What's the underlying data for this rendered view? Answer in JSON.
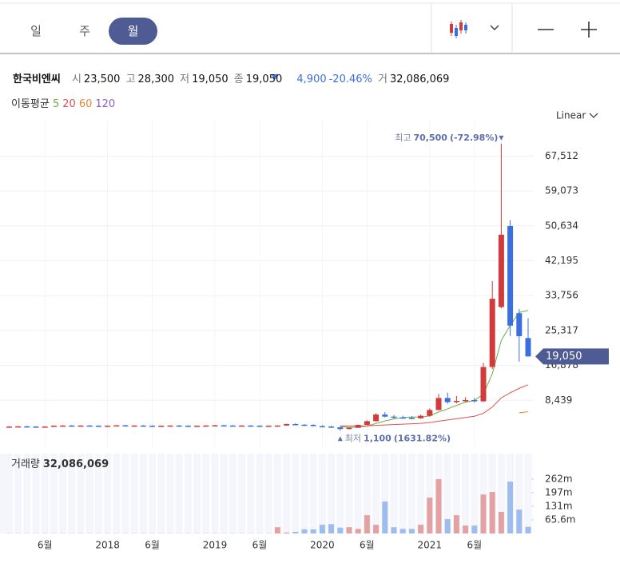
{
  "header": {
    "tabs": [
      "일",
      "주",
      "월"
    ],
    "name": "한국비엔씨",
    "quote": [
      {
        "label": "시",
        "value": "23,500"
      },
      {
        "label": "고",
        "value": "28,300"
      },
      {
        "label": "저",
        "value": "19,050"
      },
      {
        "label": "종",
        "value": "19,050"
      }
    ],
    "change": "4,900",
    "change_pct": "-20.46%",
    "volume_label": "거",
    "volume": "32,086,069",
    "scale": "Linear"
  },
  "chart_data": {
    "type": "candlestick",
    "grid": true,
    "categories": [
      null,
      null,
      null,
      null,
      "6월",
      null,
      null,
      null,
      null,
      null,
      null,
      "2018",
      null,
      null,
      null,
      null,
      "6월",
      null,
      null,
      null,
      null,
      null,
      null,
      "2019",
      null,
      null,
      null,
      null,
      "6월",
      null,
      null,
      null,
      null,
      null,
      null,
      "2020",
      null,
      null,
      null,
      null,
      "6월",
      null,
      null,
      null,
      null,
      null,
      null,
      "2021",
      null,
      null,
      null,
      null,
      "6월",
      null,
      null,
      null,
      null,
      null,
      null
    ],
    "open": [
      2050,
      2100,
      2150,
      2100,
      2050,
      2100,
      2300,
      2350,
      2300,
      2350,
      2300,
      2200,
      2300,
      2400,
      2300,
      2350,
      2300,
      2250,
      2300,
      2350,
      2300,
      2250,
      2300,
      2350,
      2400,
      2350,
      2300,
      2350,
      2300,
      2250,
      2300,
      2350,
      2700,
      2550,
      2500,
      2200,
      2100,
      1900,
      1500,
      1800,
      2500,
      3400,
      5000,
      4500,
      4300,
      4200,
      4100,
      4700,
      6100,
      9000,
      8000,
      8300,
      8500,
      8200,
      16500,
      31000,
      50600,
      29500,
      23500
    ],
    "high": [
      2200,
      2250,
      2300,
      2200,
      2150,
      2400,
      2450,
      2500,
      2400,
      2450,
      2400,
      2350,
      2450,
      2500,
      2400,
      2450,
      2400,
      2350,
      2400,
      2450,
      2400,
      2350,
      2400,
      2500,
      2550,
      2450,
      2400,
      2450,
      2400,
      2350,
      2400,
      2800,
      2900,
      2700,
      2650,
      2400,
      2300,
      2000,
      1900,
      2600,
      3600,
      5300,
      5600,
      4900,
      4700,
      4600,
      5000,
      6500,
      10000,
      10300,
      9500,
      9200,
      9000,
      17500,
      37300,
      70500,
      52000,
      30500,
      28300
    ],
    "low": [
      1950,
      2000,
      2050,
      2000,
      1950,
      2050,
      2200,
      2250,
      2200,
      2250,
      2150,
      2100,
      2200,
      2250,
      2200,
      2250,
      2200,
      2150,
      2200,
      2250,
      2200,
      2150,
      2200,
      2250,
      2300,
      2250,
      2200,
      2250,
      2150,
      2150,
      2200,
      2300,
      2450,
      2400,
      2150,
      2000,
      1800,
      1100,
      1400,
      1750,
      2400,
      3300,
      4300,
      4100,
      4000,
      3900,
      4000,
      4500,
      6000,
      7600,
      7700,
      8000,
      7900,
      8000,
      16000,
      30700,
      24000,
      17800,
      19050
    ],
    "close": [
      2100,
      2150,
      2100,
      2050,
      2100,
      2300,
      2350,
      2300,
      2350,
      2300,
      2200,
      2300,
      2400,
      2300,
      2350,
      2300,
      2250,
      2300,
      2350,
      2300,
      2250,
      2300,
      2350,
      2400,
      2350,
      2300,
      2350,
      2300,
      2250,
      2300,
      2350,
      2700,
      2550,
      2500,
      2200,
      2100,
      1900,
      1500,
      1800,
      2500,
      3400,
      5000,
      4500,
      4300,
      4200,
      4100,
      4700,
      6100,
      9000,
      8000,
      8300,
      8500,
      8200,
      16500,
      33000,
      48500,
      26500,
      23950,
      19050
    ],
    "up_color": "#d13b3b",
    "down_color": "#3b6fe0",
    "volume_up_color": "#e3a1a3",
    "volume_down_color": "#9ebcee",
    "ylim": [
      -2900,
      74350
    ],
    "yticks": [
      {
        "value": 8439,
        "label": "8,439"
      },
      {
        "value": 16878,
        "label": "16,878"
      },
      {
        "value": 25317,
        "label": "25,317"
      },
      {
        "value": 33756,
        "label": "33,756"
      },
      {
        "value": 42195,
        "label": "42,195"
      },
      {
        "value": 50634,
        "label": "50,634"
      },
      {
        "value": 59073,
        "label": "59,073"
      },
      {
        "value": 67512,
        "label": "67,512"
      }
    ],
    "ma_title": "이동평균",
    "series": [
      {
        "name": "5",
        "color": "#67b04a",
        "values": [
          null,
          null,
          null,
          null,
          null,
          null,
          null,
          null,
          null,
          null,
          null,
          null,
          null,
          null,
          null,
          null,
          null,
          null,
          null,
          null,
          null,
          null,
          null,
          null,
          null,
          null,
          null,
          null,
          null,
          null,
          null,
          null,
          null,
          null,
          null,
          null,
          null,
          2040,
          1900,
          1960,
          2220,
          2840,
          3440,
          3940,
          4280,
          4420,
          4360,
          4680,
          5620,
          6380,
          7220,
          7980,
          8400,
          9900,
          14900,
          22940,
          26540,
          29690,
          30200
        ]
      },
      {
        "name": "20",
        "color": "#e0504f",
        "values": [
          null,
          null,
          null,
          null,
          null,
          null,
          null,
          null,
          null,
          null,
          null,
          null,
          null,
          null,
          null,
          null,
          null,
          null,
          null,
          null,
          null,
          null,
          null,
          null,
          null,
          null,
          null,
          null,
          null,
          null,
          null,
          null,
          null,
          null,
          null,
          null,
          null,
          2250,
          2230,
          2220,
          2250,
          2380,
          2490,
          2580,
          2680,
          2770,
          2880,
          3060,
          3400,
          3680,
          3980,
          4300,
          4580,
          5290,
          6820,
          9030,
          10260,
          11340,
          12200
        ]
      },
      {
        "name": "60",
        "color": "#e0883a",
        "values": [
          null,
          null,
          null,
          null,
          null,
          null,
          null,
          null,
          null,
          null,
          null,
          null,
          null,
          null,
          null,
          null,
          null,
          null,
          null,
          null,
          null,
          null,
          null,
          null,
          null,
          null,
          null,
          null,
          null,
          null,
          null,
          null,
          null,
          null,
          null,
          null,
          null,
          null,
          null,
          null,
          null,
          null,
          null,
          null,
          null,
          null,
          null,
          null,
          null,
          null,
          null,
          null,
          null,
          null,
          null,
          null,
          null,
          5400,
          5700
        ]
      },
      {
        "name": "120",
        "color": "#8a5bd0",
        "values": [
          null,
          null,
          null,
          null,
          null,
          null,
          null,
          null,
          null,
          null,
          null,
          null,
          null,
          null,
          null,
          null,
          null,
          null,
          null,
          null,
          null,
          null,
          null,
          null,
          null,
          null,
          null,
          null,
          null,
          null,
          null,
          null,
          null,
          null,
          null,
          null,
          null,
          null,
          null,
          null,
          null,
          null,
          null,
          null,
          null,
          null,
          null,
          null,
          null,
          null,
          null,
          null,
          null,
          null,
          null,
          null,
          null,
          null,
          null
        ]
      }
    ],
    "volume_title": "거래량",
    "volume": [
      1,
      1,
      1,
      1,
      1,
      1,
      1,
      1,
      1,
      1,
      1,
      1,
      1,
      1,
      1,
      1,
      1,
      1,
      1,
      1,
      1,
      1,
      1,
      1,
      1,
      1,
      1,
      1,
      1,
      1,
      30,
      5,
      8,
      20,
      20,
      42,
      45,
      28,
      30,
      22,
      88,
      42,
      154,
      30,
      22,
      22,
      42,
      173,
      262,
      69,
      88,
      38,
      38,
      188,
      200,
      104,
      250,
      115,
      32.086069
    ],
    "vlim": [
      0,
      385
    ],
    "vticks": [
      {
        "value": 65.6,
        "label": "65.6m"
      },
      {
        "value": 131,
        "label": "131m"
      },
      {
        "value": 197,
        "label": "197m"
      },
      {
        "value": 262,
        "label": "262m"
      }
    ],
    "annotations": [
      {
        "label": "최고",
        "value": "70,500",
        "note": "(-72.98%)"
      },
      {
        "label": "최저",
        "value": "1,100",
        "note": "(1631.82%)"
      }
    ]
  }
}
